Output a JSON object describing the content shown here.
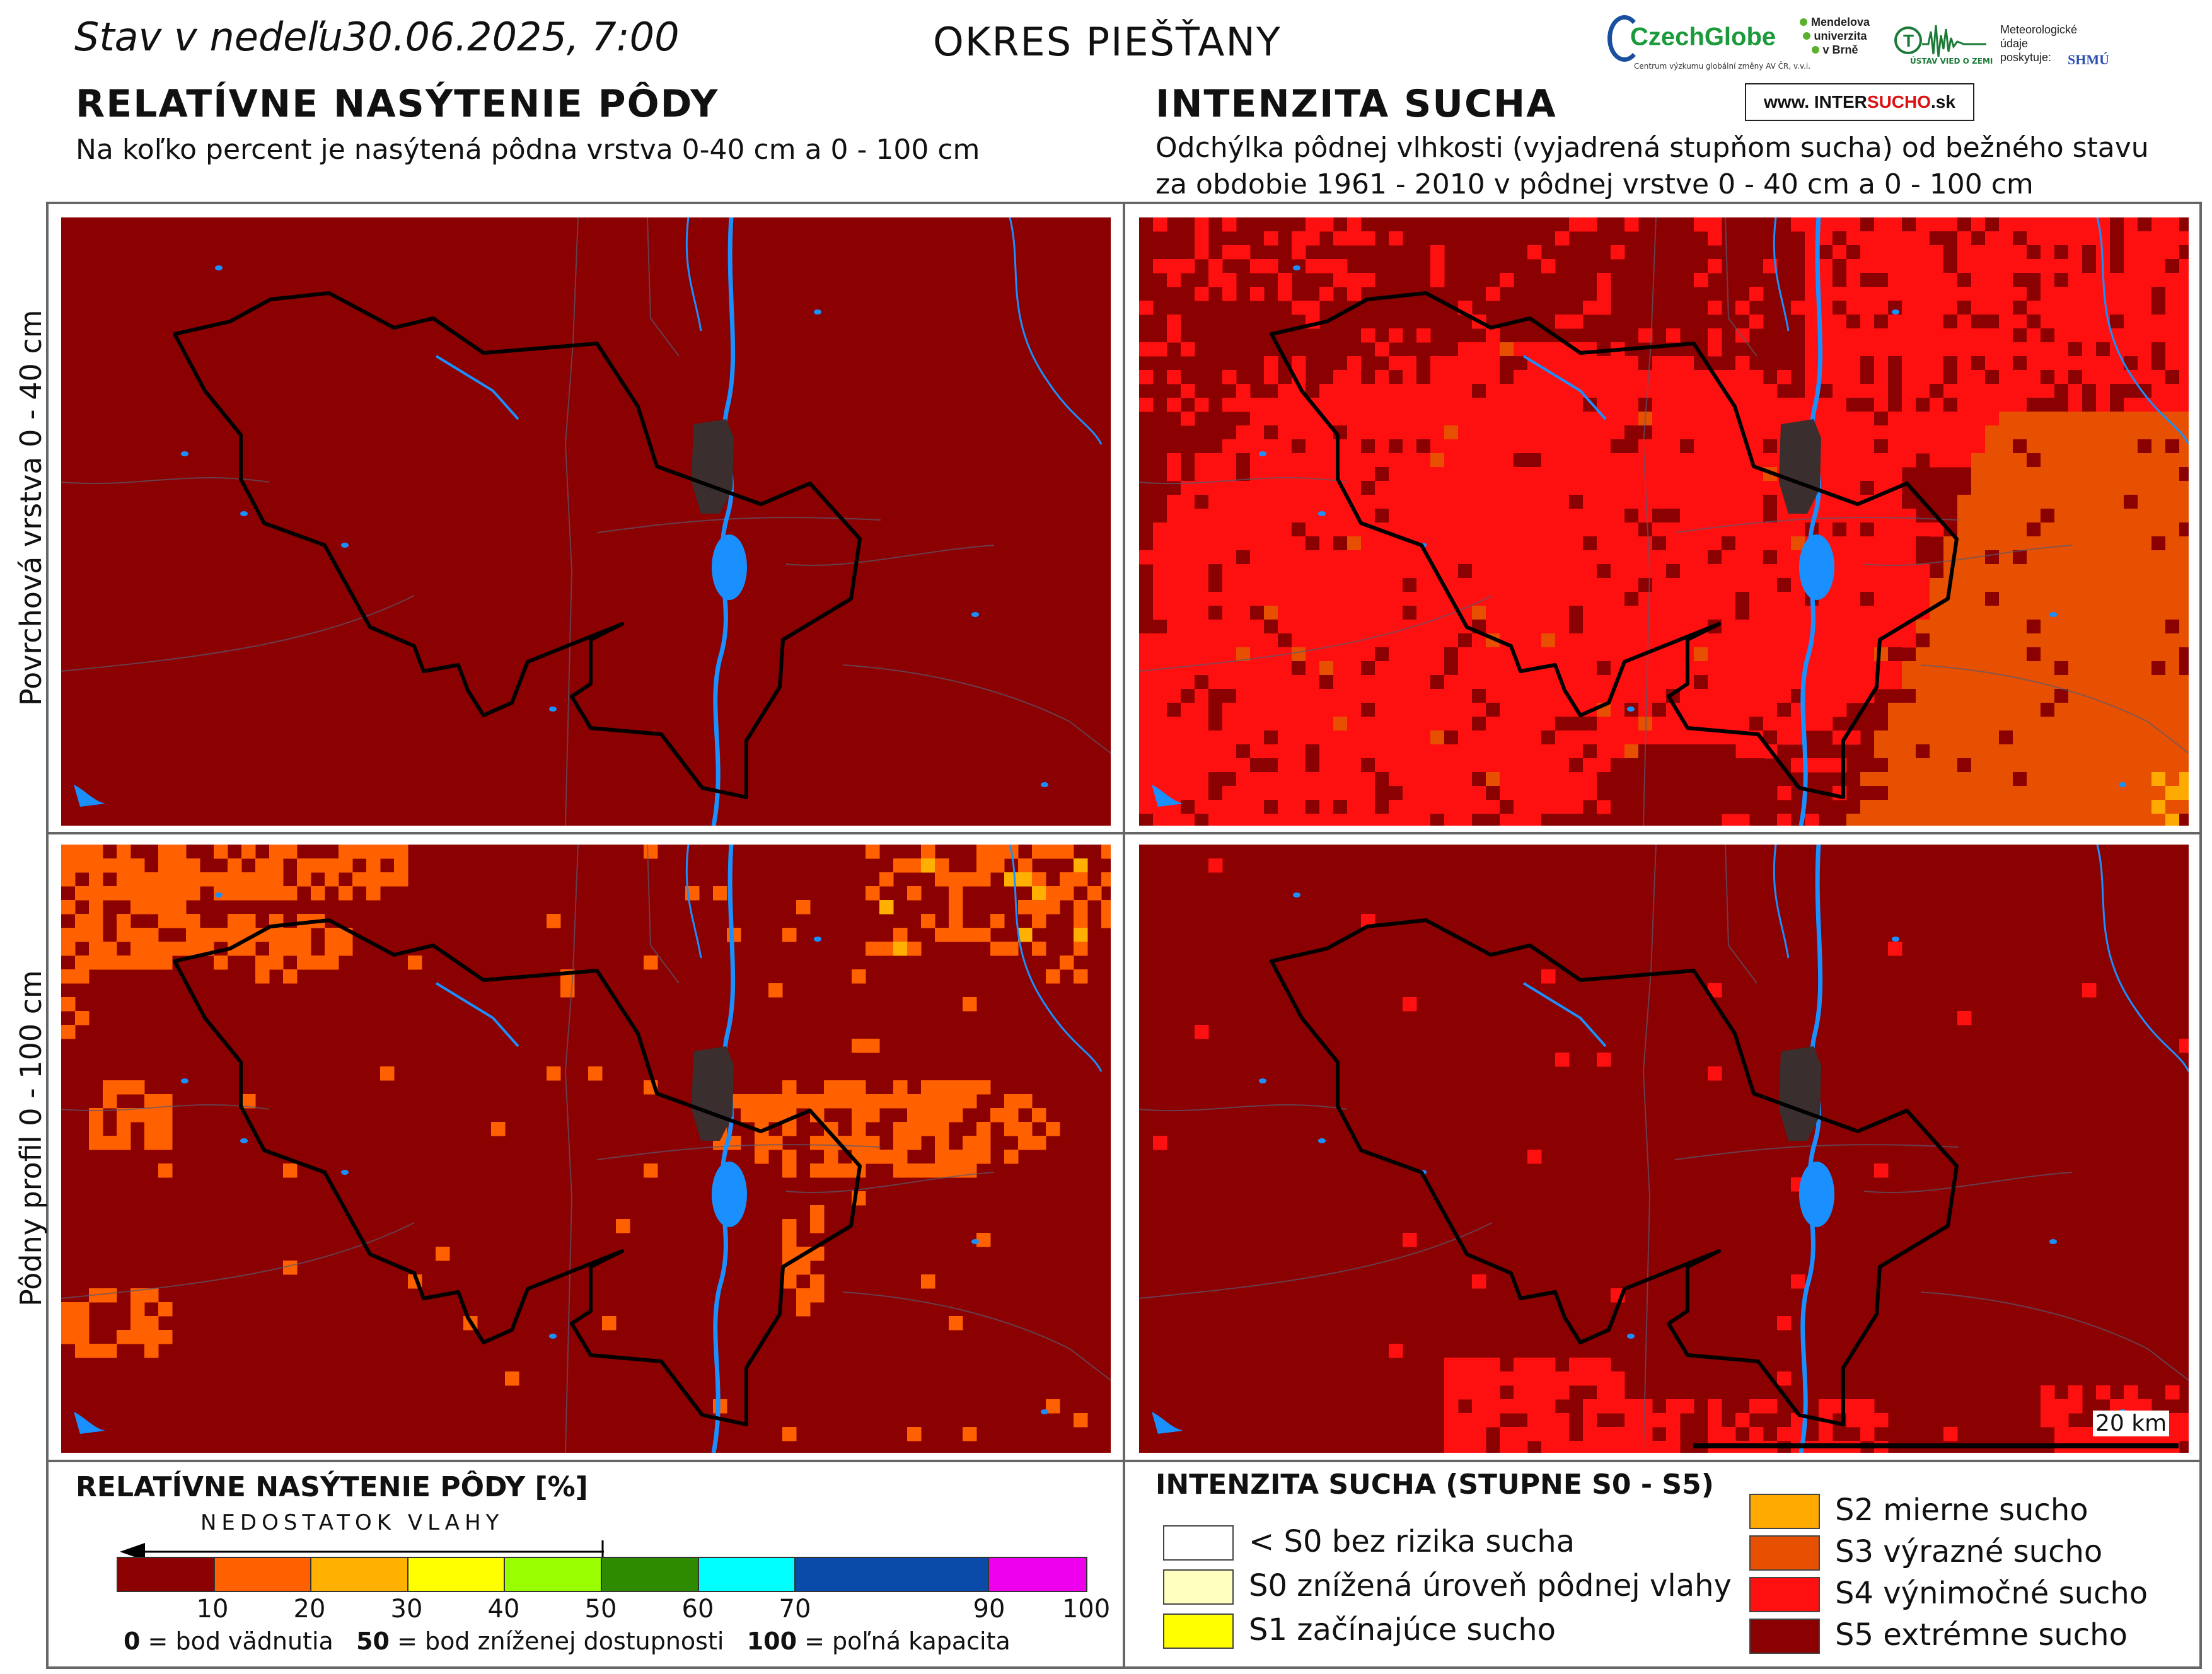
{
  "header": {
    "status_prefix": "Stav v nedeľu",
    "datetime": "30.06.2025, 7:00",
    "district": "OKRES PIEŠŤANY",
    "left_title": "RELATÍVNE NASÝTENIE PÔDY",
    "left_subtitle": "Na koľko percent je nasýtená pôdna vrstva 0-40 cm a 0 - 100 cm",
    "right_title": "INTENZITA SUCHA",
    "right_subtitle_1": "Odchýlka pôdnej vlhkosti (vyjadrená stupňom sucha) od bežného stavu",
    "right_subtitle_2": "za obdobie 1961 - 2010 v pôdnej vrstve 0 - 40 cm a 0 - 100 cm"
  },
  "logos": {
    "czechglobe": "CzechGlobe",
    "czechglobe_sub": "Centrum výzkumu globální změny AV ČR, v.v.i.",
    "mendel": [
      "Mendelova",
      "univerzita",
      "v Brně"
    ],
    "uvz": "ÚSTAV VIED O ZEMI",
    "meteo": [
      "Meteorologické",
      "údaje",
      "poskytuje:"
    ],
    "shmu": "SHMÚ",
    "intersucho_prefix": "www.",
    "intersucho_inter": "INTER",
    "intersucho_sucho": "SUCHO",
    "intersucho_suffix": ".sk"
  },
  "rows": {
    "top_label": "Povrchová vrstva 0 - 40 cm",
    "bottom_label": "Pôdny profil 0 - 100 cm"
  },
  "maps": {
    "colors": {
      "s5": "#8b0000",
      "s4": "#ff1010",
      "s3": "#e65000",
      "s2": "#ffaa00",
      "sat_10_20": "#ff6000",
      "sat_20_30": "#ffb000",
      "sat_30_40": "#ffff00",
      "city": "#3a2e2e",
      "water": "#1a90ff",
      "border": "#000000"
    },
    "scalebar_label": "20 km"
  },
  "legend_left": {
    "title": "RELATÍVNE NASÝTENIE PÔDY [%]",
    "arrow_label": "NEDOSTATOK VLAHY",
    "segments": [
      {
        "from": 0,
        "to": 10,
        "color": "#8b0000"
      },
      {
        "from": 10,
        "to": 20,
        "color": "#ff6000"
      },
      {
        "from": 20,
        "to": 30,
        "color": "#ffb000"
      },
      {
        "from": 30,
        "to": 40,
        "color": "#ffff00"
      },
      {
        "from": 40,
        "to": 50,
        "color": "#99ff00"
      },
      {
        "from": 50,
        "to": 60,
        "color": "#2e8b00"
      },
      {
        "from": 60,
        "to": 70,
        "color": "#00ffff"
      },
      {
        "from": 70,
        "to": 90,
        "color": "#0a4aa8"
      },
      {
        "from": 90,
        "to": 100,
        "color": "#ee00ee"
      }
    ],
    "ticks": [
      "10",
      "20",
      "30",
      "40",
      "50",
      "60",
      "70",
      "90",
      "100"
    ],
    "note_0": "0",
    "note_0_text": "= bod vädnutia",
    "note_50": "50",
    "note_50_text": "= bod zníženej dostupnosti",
    "note_100": "100",
    "note_100_text": "= poľná kapacita"
  },
  "legend_right": {
    "title": "INTENZITA SUCHA (STUPNE S0 - S5)",
    "items_left": [
      {
        "label": "< S0 bez rizika sucha",
        "color": "#ffffff"
      },
      {
        "label": "S0 znížená úroveň pôdnej vlahy",
        "color": "#ffffc0"
      },
      {
        "label": "S1 začínajúce sucho",
        "color": "#ffff00"
      }
    ],
    "items_right": [
      {
        "label": "S2 mierne sucho",
        "color": "#ffaa00"
      },
      {
        "label": "S3 výrazné sucho",
        "color": "#e65000"
      },
      {
        "label": "S4 výnimočné sucho",
        "color": "#ff1010"
      },
      {
        "label": "S5 extrémne sucho",
        "color": "#8b0000"
      }
    ]
  }
}
